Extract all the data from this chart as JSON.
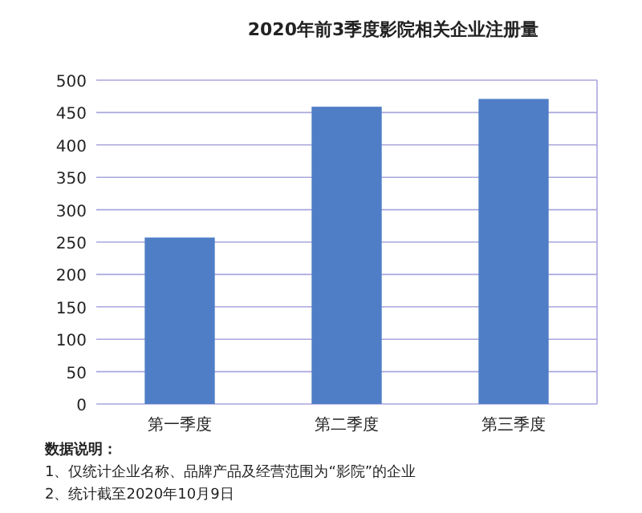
{
  "chart_data": {
    "type": "bar",
    "title": "2020年前3季度影院相关企业注册量",
    "categories": [
      "第一季度",
      "第二季度",
      "第三季度"
    ],
    "values": [
      257,
      459,
      471
    ],
    "color": "#4f7ec6",
    "ylim": [
      0,
      500
    ],
    "yticks": [
      0,
      50,
      100,
      150,
      200,
      250,
      300,
      350,
      400,
      450,
      500
    ],
    "grid": "y",
    "annotations": [
      "数据说明：",
      "1、仅统计企业名称、品牌产品及经营范围为“影院”的企业",
      "2、统计截至2020年10月9日"
    ]
  }
}
